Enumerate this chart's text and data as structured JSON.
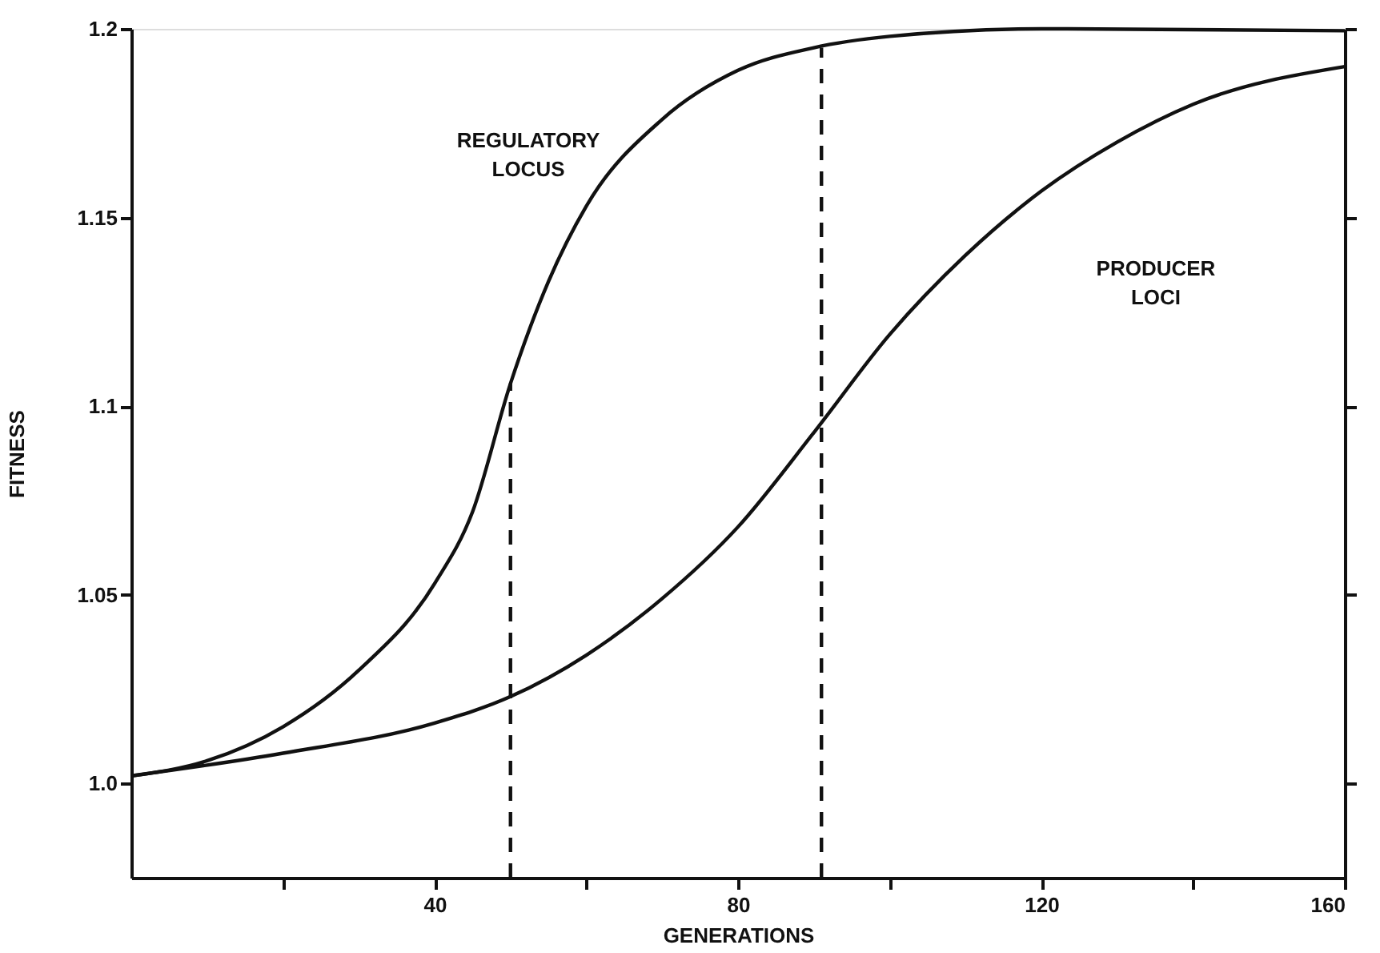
{
  "chart_data": {
    "type": "line",
    "xlabel": "GENERATIONS",
    "ylabel": "FITNESS",
    "xlim": [
      0,
      160
    ],
    "ylim": [
      0.975,
      1.2
    ],
    "xticks": [
      {
        "value": 20,
        "label": null
      },
      40,
      {
        "value": 60,
        "label": null
      },
      80,
      {
        "value": 100,
        "label": null
      },
      120,
      {
        "value": 140,
        "label": null
      },
      160
    ],
    "yticks": [
      {
        "value": 1,
        "label": "1.0"
      },
      1.05,
      1.1,
      1.15,
      1.2
    ],
    "grid": false,
    "marker": "none",
    "series": [
      {
        "color": "#111111",
        "line_style": "solid",
        "x": [
          0,
          10,
          20,
          30,
          40,
          45,
          50,
          55,
          60,
          70,
          80,
          90,
          100,
          120,
          160
        ],
        "values": [
          1.002,
          1.006,
          1.015,
          1.03,
          1.053,
          1.072,
          1.106,
          1.133,
          1.153,
          1.176,
          1.189,
          1.195,
          1.198,
          1.2,
          1.1995
        ]
      },
      {
        "color": "#111111",
        "line_style": "solid",
        "x": [
          0,
          20,
          40,
          50,
          60,
          70,
          80,
          90,
          100,
          110,
          120,
          130,
          140,
          160
        ],
        "values": [
          1.002,
          1.008,
          1.016,
          1.023,
          1.034,
          1.049,
          1.068,
          1.093,
          1.119,
          1.14,
          1.157,
          1.17,
          1.18,
          1.19
        ]
      },
      {
        "color": "#111111",
        "line_style": "dashed",
        "x": [
          50,
          50
        ],
        "values": [
          0.975,
          1.106
        ]
      },
      {
        "color": "#111111",
        "line_style": "dashed",
        "x": [
          91,
          91
        ],
        "values": [
          0.975,
          1.195
        ]
      }
    ],
    "annotations": [
      "REGULATORY\nLOCUS",
      "PRODUCER\nLOCI"
    ]
  }
}
